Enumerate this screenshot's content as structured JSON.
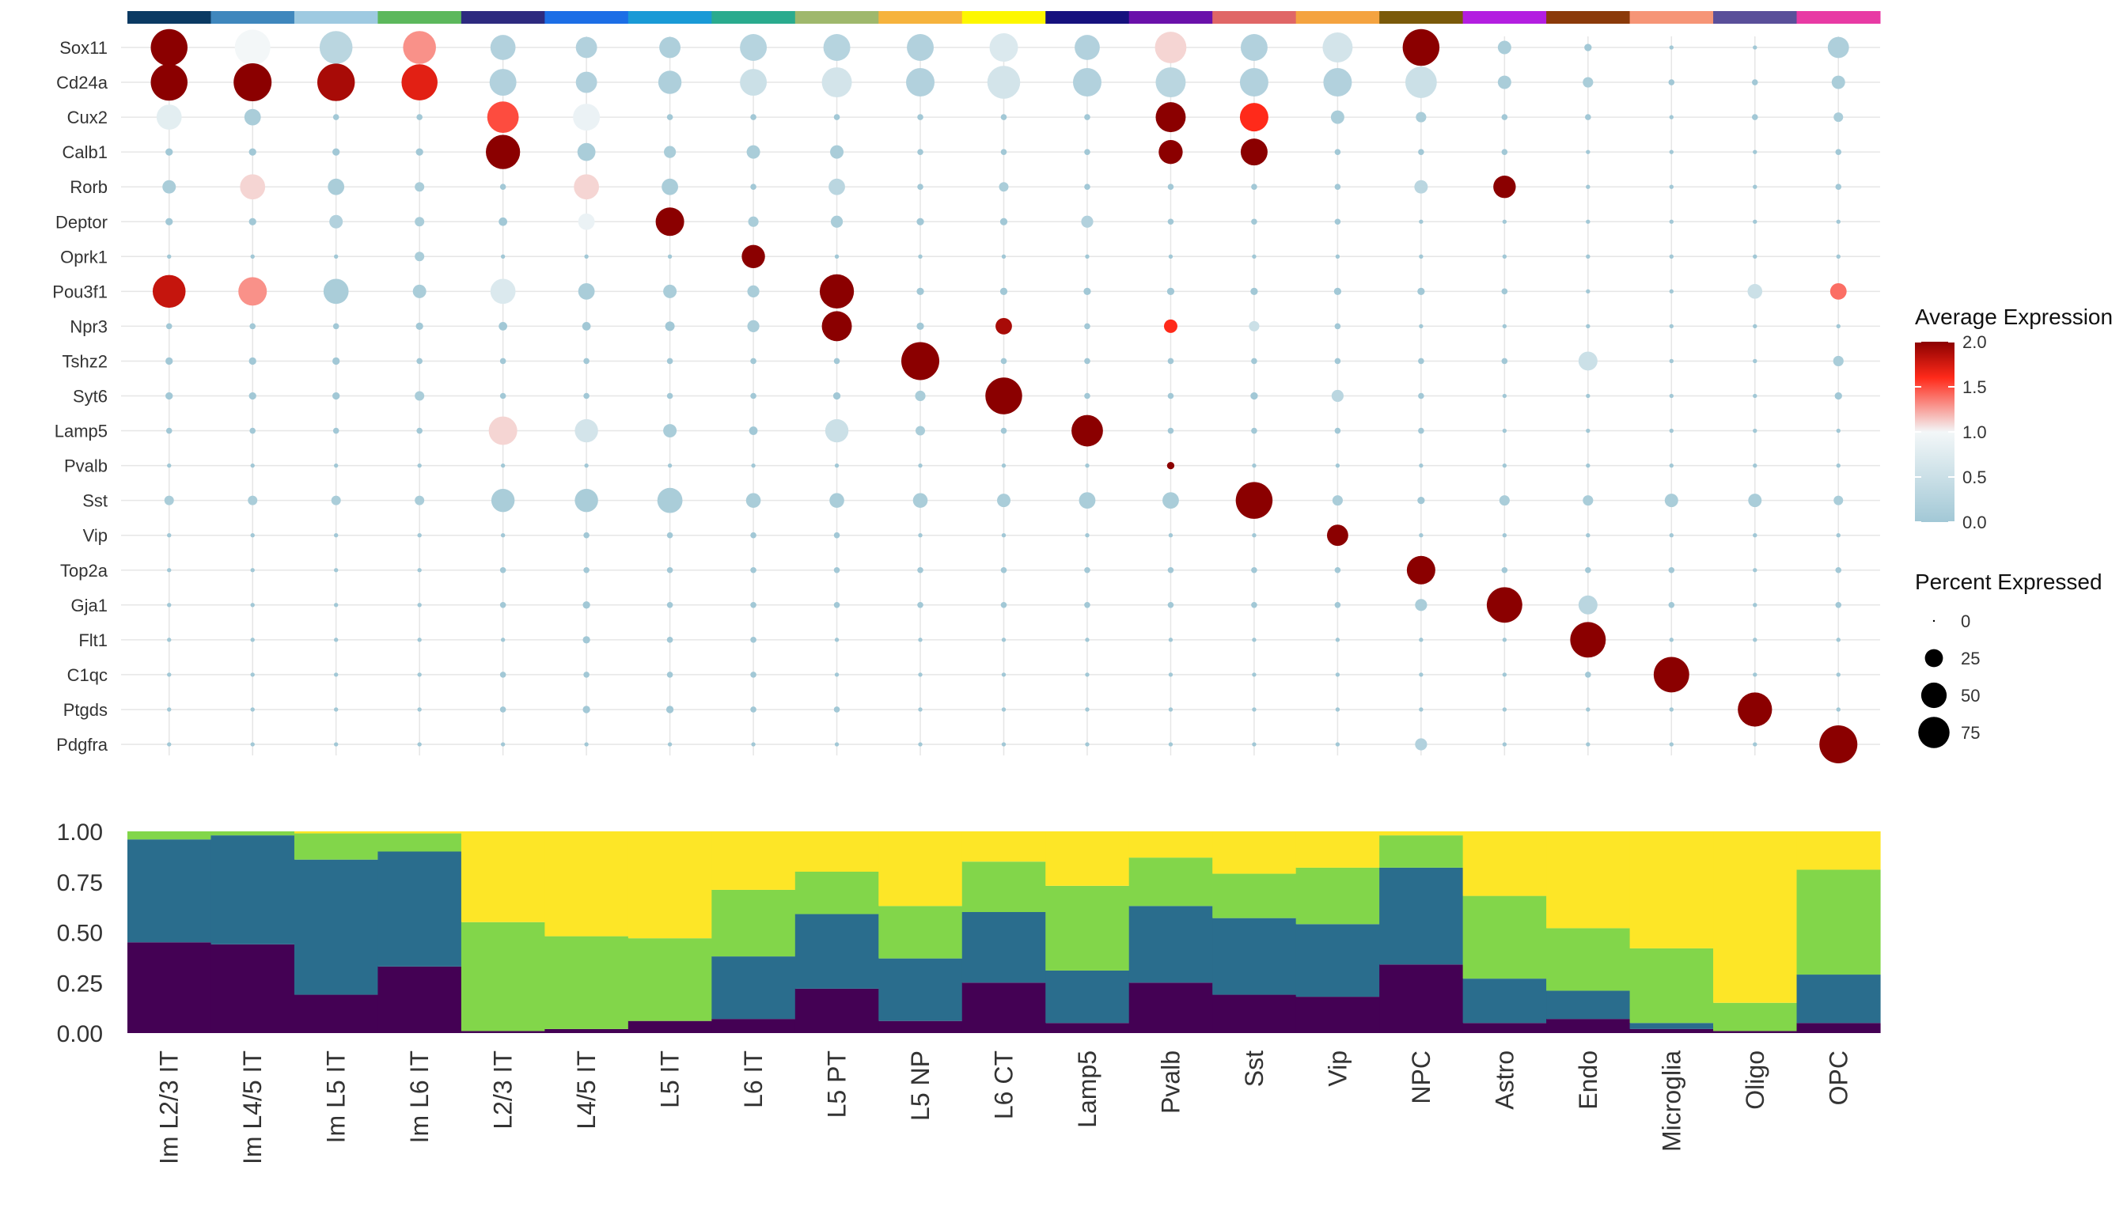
{
  "chart_data": [
    {
      "type": "dotplot",
      "genes": [
        "Sox11",
        "Cd24a",
        "Cux2",
        "Calb1",
        "Rorb",
        "Deptor",
        "Oprk1",
        "Pou3f1",
        "Npr3",
        "Tshz2",
        "Syt6",
        "Lamp5",
        "Pvalb",
        "Sst",
        "Vip",
        "Top2a",
        "Gja1",
        "Flt1",
        "C1qc",
        "Ptgds",
        "Pdgfra"
      ],
      "clusters": [
        "Im L2/3 IT",
        "Im L4/5 IT",
        "Im L5 IT",
        "Im L6 IT",
        "L2/3 IT",
        "L4/5 IT",
        "L5 IT",
        "L6 IT",
        "L5 PT",
        "L5 NP",
        "L6 CT",
        "Lamp5",
        "Pvalb",
        "Sst",
        "Vip",
        "NPC",
        "Astro",
        "Endo",
        "Microglia",
        "Oligo",
        "OPC"
      ],
      "cluster_colors": [
        "#0b3a63",
        "#3f87bd",
        "#9ecae1",
        "#5cb85c",
        "#2d2a7f",
        "#1c6ee6",
        "#1a9ad6",
        "#2aab8e",
        "#9fb86c",
        "#f6b33d",
        "#fdf700",
        "#16117e",
        "#6a11aa",
        "#e06666",
        "#f4a340",
        "#7a5a0a",
        "#b31ee0",
        "#8b3a0a",
        "#f69577",
        "#5a4f9a",
        "#e83aa4"
      ],
      "color_legend": {
        "title": "Average Expression",
        "ticks": [
          "0.0",
          "0.5",
          "1.0",
          "1.5",
          "2.0"
        ],
        "range": [
          0,
          2
        ],
        "colors": [
          "#a2c8d6",
          "#f3f7f8",
          "#ff2a1a",
          "#8b0000"
        ]
      },
      "size_legend": {
        "title": "Percent Expressed",
        "ticks": [
          "0",
          "25",
          "50",
          "75"
        ],
        "values": [
          0,
          25,
          50,
          75
        ]
      },
      "expression": [
        [
          2.0,
          1.0,
          0.3,
          1.3,
          0.2,
          0.2,
          0.15,
          0.25,
          0.25,
          0.2,
          0.7,
          0.2,
          1.1,
          0.2,
          0.6,
          2.0,
          0.1,
          0,
          0,
          0,
          0.15
        ],
        [
          2.0,
          2.0,
          1.9,
          1.7,
          0.2,
          0.2,
          0.15,
          0.5,
          0.6,
          0.2,
          0.6,
          0.2,
          0.3,
          0.2,
          0.2,
          0.5,
          0.1,
          0.1,
          0,
          0,
          0.1
        ],
        [
          0.8,
          0.1,
          0,
          0,
          1.5,
          0.9,
          0,
          0,
          0,
          0,
          0,
          0,
          2.0,
          1.6,
          0.1,
          0.1,
          0,
          0,
          0,
          0,
          0.1
        ],
        [
          0,
          0,
          0,
          0,
          2.0,
          0.1,
          0.1,
          0.1,
          0.1,
          0,
          0,
          0,
          2.0,
          2.0,
          0,
          0,
          0,
          0,
          0,
          0,
          0
        ],
        [
          0.1,
          1.1,
          0.1,
          0.1,
          0,
          1.1,
          0.1,
          0,
          0.3,
          0,
          0.1,
          0,
          0,
          0,
          0,
          0.3,
          2.0,
          0,
          0,
          0,
          0
        ],
        [
          0,
          0,
          0.2,
          0.1,
          0,
          0.9,
          2.0,
          0.1,
          0.1,
          0,
          0,
          0.2,
          0,
          0,
          0,
          0,
          0,
          0,
          0,
          0,
          0
        ],
        [
          0,
          0,
          0,
          0.1,
          0,
          0,
          0,
          2.0,
          0,
          0,
          0,
          0,
          0,
          0,
          0,
          0,
          0,
          0,
          0,
          0,
          0
        ],
        [
          1.8,
          1.3,
          0.1,
          0.1,
          0.7,
          0.1,
          0.1,
          0.1,
          2.0,
          0,
          0,
          0,
          0,
          0,
          0,
          0,
          0,
          0,
          0,
          0.5,
          1.4
        ],
        [
          0,
          0,
          0,
          0,
          0,
          0,
          0,
          0.1,
          2.0,
          0,
          1.9,
          0,
          1.6,
          0.5,
          0,
          0,
          0,
          0,
          0,
          0,
          0
        ],
        [
          0,
          0,
          0,
          0,
          0,
          0,
          0,
          0,
          0,
          2.0,
          0,
          0,
          0,
          0,
          0,
          0,
          0,
          0.5,
          0,
          0,
          0.1
        ],
        [
          0,
          0,
          0,
          0.1,
          0,
          0,
          0,
          0,
          0,
          0.1,
          2.0,
          0,
          0,
          0,
          0.3,
          0,
          0,
          0,
          0,
          0,
          0
        ],
        [
          0,
          0,
          0,
          0,
          1.1,
          0.6,
          0.1,
          0,
          0.5,
          0.1,
          0,
          2.0,
          0,
          0,
          0,
          0,
          0,
          0,
          0,
          0,
          0
        ],
        [
          0,
          0,
          0,
          0,
          0,
          0,
          0,
          0,
          0,
          0,
          0,
          0,
          2.0,
          0,
          0,
          0,
          0,
          0,
          0,
          0,
          0
        ],
        [
          0.1,
          0.1,
          0.1,
          0.1,
          0.1,
          0.1,
          0.1,
          0.1,
          0.1,
          0.1,
          0.1,
          0.1,
          0.1,
          2.0,
          0.1,
          0,
          0.1,
          0.1,
          0.1,
          0.1,
          0.1
        ],
        [
          0,
          0,
          0,
          0,
          0,
          0,
          0,
          0,
          0,
          0,
          0,
          0,
          0,
          0,
          2.0,
          0,
          0,
          0,
          0,
          0,
          0
        ],
        [
          0,
          0,
          0,
          0,
          0,
          0,
          0,
          0,
          0,
          0,
          0,
          0,
          0,
          0,
          0,
          2.0,
          0,
          0,
          0,
          0,
          0
        ],
        [
          0,
          0,
          0,
          0,
          0,
          0,
          0,
          0,
          0,
          0,
          0,
          0,
          0,
          0,
          0,
          0.1,
          2.0,
          0.3,
          0,
          0,
          0
        ],
        [
          0,
          0,
          0,
          0,
          0,
          0,
          0,
          0,
          0,
          0,
          0,
          0,
          0,
          0,
          0,
          0,
          0,
          2.0,
          0,
          0,
          0
        ],
        [
          0,
          0,
          0,
          0,
          0,
          0,
          0,
          0,
          0,
          0,
          0,
          0,
          0,
          0,
          0,
          0,
          0,
          0,
          2.0,
          0,
          0
        ],
        [
          0,
          0,
          0,
          0,
          0,
          0,
          0,
          0,
          0,
          0,
          0,
          0,
          0,
          0,
          0,
          0,
          0,
          0,
          0,
          2.0,
          0
        ],
        [
          0,
          0,
          0,
          0,
          0,
          0,
          0,
          0,
          0,
          0,
          0,
          0,
          0,
          0,
          0,
          0.2,
          0,
          0,
          0,
          0,
          2.0
        ]
      ],
      "percent": [
        [
          75,
          70,
          60,
          60,
          35,
          25,
          25,
          40,
          40,
          40,
          45,
          35,
          55,
          40,
          50,
          75,
          10,
          3,
          1,
          1,
          25
        ],
        [
          75,
          80,
          78,
          72,
          40,
          25,
          30,
          40,
          50,
          45,
          60,
          45,
          50,
          45,
          45,
          55,
          10,
          6,
          2,
          2,
          10
        ],
        [
          35,
          15,
          2,
          2,
          55,
          40,
          2,
          2,
          2,
          2,
          2,
          2,
          50,
          45,
          10,
          6,
          2,
          2,
          1,
          2,
          5
        ],
        [
          3,
          3,
          3,
          3,
          65,
          18,
          8,
          10,
          10,
          2,
          2,
          2,
          32,
          40,
          2,
          2,
          2,
          1,
          1,
          1,
          2
        ],
        [
          10,
          35,
          15,
          5,
          2,
          35,
          15,
          2,
          15,
          2,
          5,
          2,
          2,
          2,
          2,
          10,
          28,
          1,
          1,
          1,
          2
        ],
        [
          3,
          3,
          10,
          5,
          4,
          15,
          45,
          6,
          8,
          3,
          3,
          8,
          2,
          2,
          2,
          1,
          1,
          1,
          1,
          1,
          1
        ],
        [
          1,
          1,
          1,
          5,
          1,
          1,
          1,
          30,
          1,
          1,
          1,
          1,
          1,
          1,
          1,
          1,
          1,
          1,
          1,
          1,
          1
        ],
        [
          60,
          45,
          35,
          10,
          35,
          15,
          10,
          8,
          65,
          3,
          3,
          3,
          3,
          3,
          3,
          3,
          2,
          1,
          1,
          12,
          15
        ],
        [
          2,
          2,
          2,
          3,
          4,
          4,
          5,
          8,
          50,
          3,
          15,
          2,
          10,
          6,
          2,
          1,
          1,
          1,
          1,
          1,
          1
        ],
        [
          3,
          3,
          3,
          2,
          2,
          2,
          2,
          2,
          2,
          80,
          2,
          2,
          2,
          2,
          2,
          2,
          2,
          20,
          1,
          1,
          6
        ],
        [
          3,
          3,
          3,
          5,
          2,
          2,
          2,
          2,
          3,
          6,
          75,
          2,
          2,
          3,
          8,
          2,
          1,
          1,
          1,
          1,
          3
        ],
        [
          2,
          2,
          2,
          2,
          45,
          30,
          10,
          4,
          30,
          5,
          2,
          55,
          2,
          2,
          2,
          2,
          1,
          1,
          1,
          1,
          1
        ],
        [
          1,
          1,
          1,
          1,
          1,
          1,
          1,
          1,
          1,
          1,
          1,
          1,
          3,
          1,
          1,
          1,
          1,
          1,
          1,
          1,
          1
        ],
        [
          5,
          5,
          5,
          5,
          30,
          30,
          35,
          12,
          12,
          12,
          10,
          15,
          15,
          75,
          6,
          3,
          6,
          6,
          10,
          10,
          5
        ],
        [
          1,
          1,
          1,
          1,
          1,
          2,
          2,
          2,
          2,
          1,
          1,
          1,
          1,
          1,
          25,
          1,
          1,
          1,
          1,
          1,
          1
        ],
        [
          1,
          1,
          1,
          1,
          2,
          2,
          2,
          2,
          2,
          2,
          2,
          2,
          2,
          2,
          2,
          45,
          2,
          2,
          2,
          1,
          2
        ],
        [
          1,
          1,
          1,
          1,
          2,
          3,
          2,
          2,
          2,
          2,
          2,
          2,
          2,
          2,
          2,
          8,
          70,
          20,
          2,
          1,
          2
        ],
        [
          1,
          1,
          1,
          1,
          1,
          3,
          2,
          2,
          1,
          1,
          1,
          1,
          1,
          1,
          1,
          1,
          1,
          70,
          1,
          1,
          1
        ],
        [
          1,
          1,
          1,
          1,
          2,
          2,
          2,
          2,
          1,
          1,
          1,
          1,
          1,
          1,
          1,
          1,
          1,
          2,
          70,
          1,
          1
        ],
        [
          1,
          1,
          1,
          1,
          2,
          3,
          3,
          2,
          2,
          1,
          1,
          1,
          1,
          1,
          1,
          1,
          1,
          1,
          1,
          65,
          1
        ],
        [
          1,
          1,
          1,
          1,
          1,
          1,
          1,
          1,
          1,
          1,
          1,
          1,
          1,
          1,
          1,
          8,
          1,
          1,
          1,
          1,
          80
        ]
      ]
    },
    {
      "type": "stacked_bar",
      "categories": [
        "Im L2/3 IT",
        "Im L4/5 IT",
        "Im L5 IT",
        "Im L6 IT",
        "L2/3 IT",
        "L4/5 IT",
        "L5 IT",
        "L6 IT",
        "L5 PT",
        "L5 NP",
        "L6 CT",
        "Lamp5",
        "Pvalb",
        "Sst",
        "Vip",
        "NPC",
        "Astro",
        "Endo",
        "Microglia",
        "Oligo",
        "OPC"
      ],
      "ylim": [
        0,
        1
      ],
      "yticks": [
        "0.00",
        "0.25",
        "0.50",
        "0.75",
        "1.00"
      ],
      "series": [
        {
          "color": "#440154",
          "values": [
            0.45,
            0.44,
            0.19,
            0.33,
            0.01,
            0.02,
            0.06,
            0.07,
            0.22,
            0.06,
            0.25,
            0.05,
            0.25,
            0.19,
            0.18,
            0.34,
            0.05,
            0.07,
            0.02,
            0.01,
            0.05
          ]
        },
        {
          "color": "#2a6d8d",
          "values": [
            0.51,
            0.54,
            0.67,
            0.57,
            0.0,
            0.0,
            0.0,
            0.31,
            0.37,
            0.31,
            0.35,
            0.26,
            0.38,
            0.38,
            0.36,
            0.48,
            0.22,
            0.14,
            0.03,
            0.0,
            0.24
          ]
        },
        {
          "color": "#82d64a",
          "values": [
            0.04,
            0.02,
            0.13,
            0.09,
            0.54,
            0.46,
            0.41,
            0.33,
            0.21,
            0.26,
            0.25,
            0.42,
            0.24,
            0.22,
            0.28,
            0.16,
            0.41,
            0.31,
            0.37,
            0.14,
            0.52
          ]
        },
        {
          "color": "#fde627",
          "values": [
            0.0,
            0.0,
            0.01,
            0.01,
            0.45,
            0.52,
            0.53,
            0.29,
            0.2,
            0.37,
            0.15,
            0.27,
            0.13,
            0.21,
            0.18,
            0.02,
            0.32,
            0.48,
            0.58,
            0.85,
            0.19
          ]
        }
      ]
    }
  ]
}
